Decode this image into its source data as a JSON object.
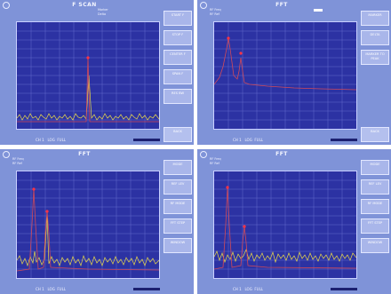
{
  "screens": [
    {
      "title": "F SCAN",
      "header_lines": [
        "Marker",
        "Delta"
      ],
      "y_ticks": [
        "",
        "",
        "",
        "",
        "",
        "",
        "",
        "",
        "",
        "",
        "",
        ""
      ],
      "x_ticks": [
        "",
        "",
        "",
        "",
        ""
      ],
      "channel": "CH 1",
      "mode_a": "LOG",
      "mode_b": "FULL",
      "menu": [
        {
          "label": "START F",
          "value": ""
        },
        {
          "label": "STOP F",
          "value": ""
        },
        {
          "label": "CENTER F",
          "value": ""
        },
        {
          "label": "SPAN F",
          "value": ""
        },
        {
          "label": "RES BW",
          "value": ""
        },
        {
          "label": "BACK",
          "value": ""
        }
      ]
    },
    {
      "title": "FFT",
      "header_lines": [
        "RF Freq",
        "RF Ref"
      ],
      "y_ticks": [
        "",
        "",
        "",
        "",
        "",
        "",
        "",
        "",
        "",
        "",
        "",
        ""
      ],
      "x_ticks": [
        "",
        "",
        "",
        "",
        ""
      ],
      "channel": "CH 1",
      "mode_a": "LOG",
      "mode_b": "FULL",
      "menu": [
        {
          "label": "MARKER",
          "value": ""
        },
        {
          "label": "DELTA",
          "value": ""
        },
        {
          "label": "MARKER TO PEAK",
          "value": ""
        },
        {
          "label": "BACK",
          "value": ""
        }
      ]
    },
    {
      "title": "FFT",
      "header_lines": [
        "RF Freq",
        "RF Ref"
      ],
      "y_ticks": [
        "",
        "",
        "",
        "",
        "",
        "",
        "",
        "",
        "",
        "",
        "",
        ""
      ],
      "x_ticks": [
        "",
        "",
        "",
        "",
        ""
      ],
      "channel": "CH 1",
      "mode_a": "LOG",
      "mode_b": "FULL",
      "menu": [
        {
          "label": "MODE",
          "value": ""
        },
        {
          "label": "REF LEV",
          "value": ""
        },
        {
          "label": "RF MODE",
          "value": ""
        },
        {
          "label": "FFT STEP",
          "value": ""
        },
        {
          "label": "WINDOW",
          "value": ""
        }
      ]
    },
    {
      "title": "FFT",
      "header_lines": [
        "RF Freq",
        "RF Ref"
      ],
      "y_ticks": [
        "",
        "",
        "",
        "",
        "",
        "",
        "",
        "",
        "",
        "",
        "",
        ""
      ],
      "x_ticks": [
        "",
        "",
        "",
        "",
        ""
      ],
      "channel": "CH 1",
      "mode_a": "LOG",
      "mode_b": "FULL",
      "menu": [
        {
          "label": "MODE",
          "value": ""
        },
        {
          "label": "REF LEV",
          "value": ""
        },
        {
          "label": "RF MODE",
          "value": ""
        },
        {
          "label": "FFT STEP",
          "value": ""
        },
        {
          "label": "WINDOW",
          "value": ""
        }
      ]
    }
  ],
  "colors": {
    "screen_bg": "#7f93d8",
    "plot_bg": "#2c32a3",
    "trace_noise": "#e8d84a",
    "trace_main": "#d04a5a",
    "marker": "#ff3344"
  }
}
